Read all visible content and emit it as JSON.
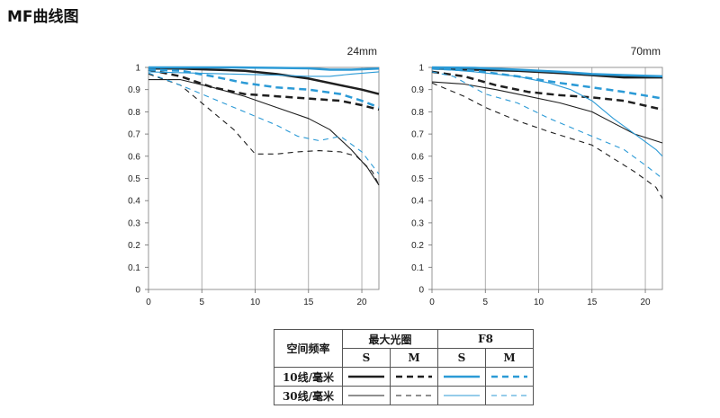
{
  "page": {
    "title": "MF曲线图"
  },
  "chart_data": [
    {
      "type": "line",
      "title": "24mm",
      "xlabel": "",
      "ylabel": "",
      "xlim": [
        0,
        21.6
      ],
      "ylim": [
        0,
        1
      ],
      "x_ticks": [
        "0",
        "5",
        "10",
        "15",
        "20"
      ],
      "y_ticks": [
        "0",
        "0.1",
        "0.2",
        "0.3",
        "0.4",
        "0.5",
        "0.6",
        "0.7",
        "0.8",
        "0.9",
        "1"
      ],
      "grid": true,
      "series": [
        {
          "freq": "10",
          "aperture": "max",
          "orient": "S",
          "points": [
            [
              0,
              0.995
            ],
            [
              3,
              0.995
            ],
            [
              6,
              0.99
            ],
            [
              9,
              0.985
            ],
            [
              12,
              0.97
            ],
            [
              15,
              0.95
            ],
            [
              18,
              0.92
            ],
            [
              20,
              0.9
            ],
            [
              21.6,
              0.88
            ]
          ]
        },
        {
          "freq": "10",
          "aperture": "max",
          "orient": "M",
          "points": [
            [
              0,
              0.99
            ],
            [
              3,
              0.96
            ],
            [
              6,
              0.91
            ],
            [
              9,
              0.88
            ],
            [
              12,
              0.87
            ],
            [
              15,
              0.86
            ],
            [
              18,
              0.85
            ],
            [
              20,
              0.83
            ],
            [
              21.6,
              0.81
            ]
          ]
        },
        {
          "freq": "10",
          "aperture": "F8",
          "orient": "S",
          "points": [
            [
              0,
              1.0
            ],
            [
              4,
              1.0
            ],
            [
              8,
              1.0
            ],
            [
              12,
              0.998
            ],
            [
              15,
              0.996
            ],
            [
              17,
              0.99
            ],
            [
              19,
              0.99
            ],
            [
              21.6,
              0.995
            ]
          ]
        },
        {
          "freq": "10",
          "aperture": "F8",
          "orient": "M",
          "points": [
            [
              0,
              0.99
            ],
            [
              3,
              0.985
            ],
            [
              6,
              0.96
            ],
            [
              9,
              0.93
            ],
            [
              12,
              0.91
            ],
            [
              15,
              0.9
            ],
            [
              18,
              0.88
            ],
            [
              20,
              0.85
            ],
            [
              21.6,
              0.82
            ]
          ]
        },
        {
          "freq": "30",
          "aperture": "max",
          "orient": "S",
          "points": [
            [
              0,
              0.945
            ],
            [
              3,
              0.945
            ],
            [
              6,
              0.91
            ],
            [
              9,
              0.87
            ],
            [
              12,
              0.82
            ],
            [
              15,
              0.77
            ],
            [
              17,
              0.72
            ],
            [
              19,
              0.63
            ],
            [
              20.5,
              0.55
            ],
            [
              21.6,
              0.47
            ]
          ]
        },
        {
          "freq": "30",
          "aperture": "max",
          "orient": "M",
          "points": [
            [
              0,
              0.97
            ],
            [
              3,
              0.92
            ],
            [
              6,
              0.8
            ],
            [
              8,
              0.72
            ],
            [
              10,
              0.61
            ],
            [
              12,
              0.61
            ],
            [
              14,
              0.62
            ],
            [
              16,
              0.625
            ],
            [
              18,
              0.62
            ],
            [
              19.5,
              0.6
            ],
            [
              21,
              0.53
            ],
            [
              21.6,
              0.47
            ]
          ]
        },
        {
          "freq": "30",
          "aperture": "F8",
          "orient": "S",
          "points": [
            [
              0,
              0.98
            ],
            [
              4,
              0.975
            ],
            [
              8,
              0.97
            ],
            [
              12,
              0.965
            ],
            [
              15,
              0.96
            ],
            [
              17,
              0.96
            ],
            [
              19,
              0.97
            ],
            [
              21.6,
              0.98
            ]
          ]
        },
        {
          "freq": "30",
          "aperture": "F8",
          "orient": "M",
          "points": [
            [
              0,
              0.975
            ],
            [
              3,
              0.92
            ],
            [
              6,
              0.86
            ],
            [
              9,
              0.8
            ],
            [
              12,
              0.74
            ],
            [
              14,
              0.69
            ],
            [
              16,
              0.67
            ],
            [
              18,
              0.69
            ],
            [
              20,
              0.62
            ],
            [
              21.6,
              0.52
            ]
          ]
        }
      ]
    },
    {
      "type": "line",
      "title": "70mm",
      "xlabel": "",
      "ylabel": "",
      "xlim": [
        0,
        21.6
      ],
      "ylim": [
        0,
        1
      ],
      "x_ticks": [
        "0",
        "5",
        "10",
        "15",
        "20"
      ],
      "y_ticks": [
        "0",
        "0.1",
        "0.2",
        "0.3",
        "0.4",
        "0.5",
        "0.6",
        "0.7",
        "0.8",
        "0.9",
        "1"
      ],
      "grid": true,
      "series": [
        {
          "freq": "10",
          "aperture": "max",
          "orient": "S",
          "points": [
            [
              0,
              0.995
            ],
            [
              4,
              0.99
            ],
            [
              8,
              0.985
            ],
            [
              12,
              0.975
            ],
            [
              15,
              0.965
            ],
            [
              18,
              0.955
            ],
            [
              20,
              0.955
            ],
            [
              21.6,
              0.955
            ]
          ]
        },
        {
          "freq": "10",
          "aperture": "max",
          "orient": "M",
          "points": [
            [
              0,
              0.98
            ],
            [
              3,
              0.96
            ],
            [
              6,
              0.92
            ],
            [
              9,
              0.89
            ],
            [
              12,
              0.875
            ],
            [
              15,
              0.865
            ],
            [
              18,
              0.85
            ],
            [
              21.6,
              0.81
            ]
          ]
        },
        {
          "freq": "10",
          "aperture": "F8",
          "orient": "S",
          "points": [
            [
              0,
              1.0
            ],
            [
              4,
              0.998
            ],
            [
              8,
              0.99
            ],
            [
              12,
              0.98
            ],
            [
              15,
              0.97
            ],
            [
              18,
              0.965
            ],
            [
              21.6,
              0.96
            ]
          ]
        },
        {
          "freq": "10",
          "aperture": "F8",
          "orient": "M",
          "points": [
            [
              0,
              0.995
            ],
            [
              4,
              0.985
            ],
            [
              8,
              0.96
            ],
            [
              12,
              0.93
            ],
            [
              15,
              0.91
            ],
            [
              18,
              0.89
            ],
            [
              21.6,
              0.86
            ]
          ]
        },
        {
          "freq": "30",
          "aperture": "max",
          "orient": "S",
          "points": [
            [
              0,
              0.935
            ],
            [
              3,
              0.925
            ],
            [
              6,
              0.9
            ],
            [
              9,
              0.87
            ],
            [
              12,
              0.84
            ],
            [
              15,
              0.8
            ],
            [
              17,
              0.75
            ],
            [
              19,
              0.7
            ],
            [
              21.6,
              0.66
            ]
          ]
        },
        {
          "freq": "30",
          "aperture": "max",
          "orient": "M",
          "points": [
            [
              0,
              0.93
            ],
            [
              3,
              0.87
            ],
            [
              5,
              0.82
            ],
            [
              8,
              0.76
            ],
            [
              11,
              0.71
            ],
            [
              13,
              0.68
            ],
            [
              15,
              0.65
            ],
            [
              17,
              0.59
            ],
            [
              19,
              0.53
            ],
            [
              21,
              0.46
            ],
            [
              21.6,
              0.41
            ]
          ]
        },
        {
          "freq": "30",
          "aperture": "F8",
          "orient": "S",
          "points": [
            [
              0,
              0.995
            ],
            [
              4,
              0.98
            ],
            [
              8,
              0.96
            ],
            [
              11,
              0.93
            ],
            [
              13,
              0.9
            ],
            [
              15,
              0.85
            ],
            [
              17,
              0.77
            ],
            [
              19,
              0.7
            ],
            [
              21,
              0.63
            ],
            [
              21.6,
              0.6
            ]
          ]
        },
        {
          "freq": "30",
          "aperture": "F8",
          "orient": "M",
          "points": [
            [
              0,
              0.98
            ],
            [
              2,
              0.96
            ],
            [
              5,
              0.88
            ],
            [
              8,
              0.84
            ],
            [
              11,
              0.77
            ],
            [
              14,
              0.71
            ],
            [
              16,
              0.67
            ],
            [
              18,
              0.63
            ],
            [
              20,
              0.56
            ],
            [
              21.6,
              0.5
            ]
          ]
        }
      ]
    }
  ],
  "line_colors": {
    "max_aperture": "#1f1f1f",
    "f8": "#2b9ad6"
  },
  "legend": {
    "row_header": "空间频率",
    "aperture_max": "最大光圈",
    "aperture_f8": "F8",
    "col_s": "S",
    "col_m": "M",
    "row_10": "10线/毫米",
    "row_30": "30线/毫米"
  }
}
